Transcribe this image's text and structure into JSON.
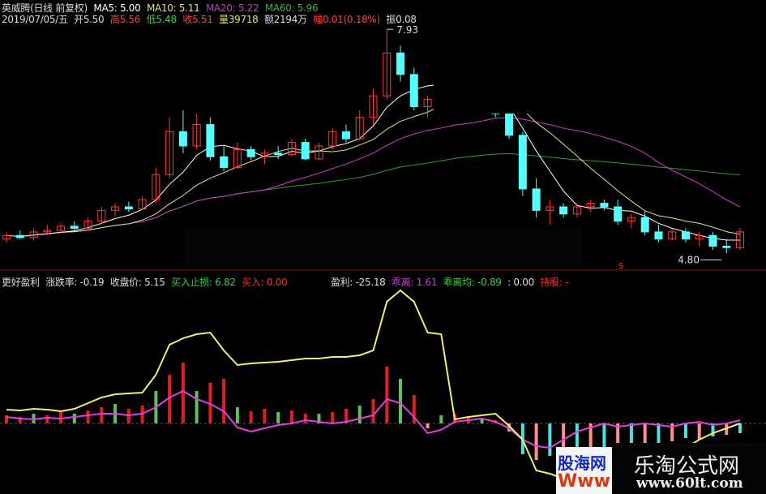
{
  "header": {
    "name_line": "英威腾(日线 前复权)",
    "ma5": "MA5: 5.00",
    "ma10": "MA10: 5.11",
    "ma20": "MA20: 5.22",
    "ma60": "MA60: 5.96",
    "date": "2019/07/05/五",
    "open": "开5.50",
    "high": "高5.56",
    "low": "低5.48",
    "close": "收5.51",
    "volume": "量39718",
    "amount": "额2194万",
    "change": "幅0.01(0.18%)",
    "amplitude": "振0.08"
  },
  "indicator": {
    "name": "更好盈利",
    "change_rate": "涨跌率: -0.19",
    "close_price": "收盘价: 5.15",
    "buy_stop": "买入止损: 6.82",
    "buy": "买入: 0.00",
    "profit": "盈利: -25.18",
    "deviation": "乖离: 1.61",
    "deviation_avg": "乖离均: -0.89",
    "extra": ": 0.00",
    "hold": "持股: -"
  },
  "colors": {
    "up": "#ff3a3a",
    "down": "#54ffff",
    "ma5": "#ffffff",
    "ma10": "#e8e08a",
    "ma20": "#d040d0",
    "ma60": "#30a030",
    "yellow": "#f0f070",
    "magenta": "#e040e0",
    "bar_up": "#e02020",
    "bar_green": "#60c060",
    "bar_pink": "#ff9090",
    "bar_cyan": "#50e0e0"
  },
  "watermarks": {
    "left_top": "股海网",
    "left_bottom": "Www",
    "right_top": "乐淘公式网",
    "right_bottom": "www.60lt.com"
  },
  "chart_data": [
    {
      "type": "candlestick",
      "annotations": {
        "high_label": "7.93",
        "low_label": "4.80",
        "signal": "S"
      },
      "ylim": [
        4.6,
        8.0
      ],
      "ohlc": [
        [
          5.0,
          5.1,
          4.95,
          5.05
        ],
        [
          5.05,
          5.12,
          5.0,
          5.02
        ],
        [
          5.02,
          5.15,
          4.98,
          5.1
        ],
        [
          5.1,
          5.2,
          5.05,
          5.12
        ],
        [
          5.12,
          5.22,
          5.08,
          5.18
        ],
        [
          5.18,
          5.25,
          5.1,
          5.15
        ],
        [
          5.15,
          5.3,
          5.12,
          5.25
        ],
        [
          5.25,
          5.45,
          5.2,
          5.4
        ],
        [
          5.4,
          5.5,
          5.32,
          5.45
        ],
        [
          5.45,
          5.52,
          5.38,
          5.42
        ],
        [
          5.42,
          5.6,
          5.4,
          5.55
        ],
        [
          5.55,
          6.0,
          5.5,
          5.9
        ],
        [
          5.9,
          6.7,
          5.85,
          6.5
        ],
        [
          6.5,
          6.8,
          6.2,
          6.3
        ],
        [
          6.3,
          6.75,
          6.25,
          6.6
        ],
        [
          6.6,
          6.7,
          6.1,
          6.15
        ],
        [
          6.15,
          6.3,
          5.95,
          6.0
        ],
        [
          6.0,
          6.35,
          5.98,
          6.25
        ],
        [
          6.25,
          6.3,
          6.1,
          6.15
        ],
        [
          6.15,
          6.25,
          6.05,
          6.2
        ],
        [
          6.2,
          6.3,
          6.12,
          6.18
        ],
        [
          6.18,
          6.4,
          6.15,
          6.35
        ],
        [
          6.35,
          6.4,
          6.1,
          6.12
        ],
        [
          6.12,
          6.35,
          6.1,
          6.3
        ],
        [
          6.3,
          6.55,
          6.25,
          6.5
        ],
        [
          6.5,
          6.6,
          6.35,
          6.4
        ],
        [
          6.4,
          6.8,
          6.38,
          6.7
        ],
        [
          6.7,
          7.1,
          6.6,
          7.0
        ],
        [
          7.0,
          7.93,
          6.95,
          7.6
        ],
        [
          7.6,
          7.7,
          7.2,
          7.3
        ],
        [
          7.3,
          7.4,
          6.8,
          6.85
        ],
        [
          6.85,
          7.0,
          6.7,
          6.95
        ],
        [
          6.95,
          7.2,
          6.85,
          7.1
        ],
        [
          7.1,
          7.3,
          7.0,
          7.2
        ],
        [
          7.2,
          7.25,
          6.95,
          7.0
        ],
        [
          7.0,
          7.05,
          6.8,
          6.85
        ],
        [
          6.85,
          6.9,
          6.7,
          6.75
        ],
        [
          6.75,
          6.8,
          6.4,
          6.45
        ],
        [
          6.45,
          6.5,
          5.6,
          5.7
        ],
        [
          5.7,
          5.85,
          5.3,
          5.4
        ],
        [
          5.4,
          5.55,
          5.2,
          5.45
        ],
        [
          5.45,
          5.5,
          5.3,
          5.35
        ],
        [
          5.35,
          5.5,
          5.3,
          5.45
        ],
        [
          5.45,
          5.55,
          5.38,
          5.5
        ],
        [
          5.5,
          5.55,
          5.4,
          5.45
        ],
        [
          5.45,
          5.55,
          5.2,
          5.25
        ],
        [
          5.25,
          5.35,
          5.15,
          5.3
        ],
        [
          5.3,
          5.4,
          5.05,
          5.1
        ],
        [
          5.1,
          5.2,
          4.95,
          5.0
        ],
        [
          5.0,
          5.15,
          4.98,
          5.1
        ],
        [
          5.1,
          5.15,
          4.95,
          5.0
        ],
        [
          5.0,
          5.1,
          4.9,
          5.05
        ],
        [
          5.05,
          5.1,
          4.85,
          4.9
        ],
        [
          4.9,
          5.0,
          4.8,
          4.88
        ],
        [
          4.88,
          5.15,
          4.85,
          5.1
        ]
      ]
    },
    {
      "type": "line+bar",
      "yellow": [
        17,
        16,
        18,
        17,
        15,
        18,
        25,
        32,
        36,
        37,
        38,
        60,
        97,
        105,
        110,
        112,
        90,
        72,
        74,
        75,
        76,
        78,
        80,
        80,
        82,
        82,
        84,
        90,
        150,
        164,
        150,
        112,
        110,
        5,
        8,
        10,
        12,
        -3,
        -20,
        -58,
        -62,
        -68,
        -66,
        -62,
        -60,
        -58,
        -56,
        -52,
        -48,
        -40,
        -30,
        -20,
        -12,
        -6,
        0
      ],
      "magenta": [
        8,
        6,
        5,
        7,
        6,
        8,
        10,
        12,
        12,
        10,
        12,
        20,
        32,
        40,
        30,
        24,
        15,
        -5,
        -10,
        -6,
        -2,
        0,
        4,
        2,
        0,
        2,
        6,
        10,
        30,
        25,
        8,
        -12,
        -8,
        2,
        4,
        6,
        2,
        -6,
        -20,
        -28,
        -30,
        -20,
        -10,
        -5,
        0,
        -4,
        -2,
        0,
        -2,
        -4,
        0,
        2,
        -2,
        0,
        4
      ],
      "bars": [
        10,
        8,
        12,
        10,
        14,
        12,
        16,
        20,
        24,
        18,
        22,
        40,
        60,
        75,
        40,
        50,
        55,
        20,
        15,
        18,
        14,
        16,
        12,
        12,
        14,
        18,
        22,
        30,
        70,
        55,
        35,
        -6,
        10,
        12,
        8,
        6,
        4,
        -10,
        -38,
        -45,
        -40,
        -35,
        -35,
        -38,
        -38,
        -42,
        -30,
        -28,
        -25,
        -22,
        -18,
        -20,
        -16,
        -14,
        -12
      ]
    }
  ]
}
